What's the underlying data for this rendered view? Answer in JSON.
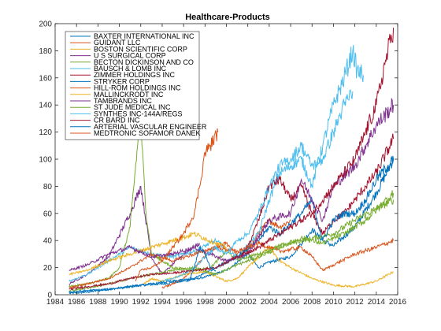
{
  "chart_data": {
    "type": "line",
    "title": "Healthcare-Products",
    "xlabel": "",
    "ylabel": "",
    "xlim": [
      1984,
      2016
    ],
    "ylim": [
      0,
      200
    ],
    "x_ticks": [
      1984,
      1986,
      1988,
      1990,
      1992,
      1994,
      1996,
      1998,
      2000,
      2002,
      2004,
      2006,
      2008,
      2010,
      2012,
      2014,
      2016
    ],
    "y_ticks": [
      0,
      20,
      40,
      60,
      80,
      100,
      120,
      140,
      160,
      180,
      200
    ],
    "grid": false,
    "legend_position": "top-left",
    "series": [
      {
        "name": "BAXTER INTERNATIONAL INC",
        "color": "#0072bd",
        "x": [
          1985.3,
          1987,
          1988,
          1990,
          1992,
          1994,
          1996,
          1998,
          2000,
          2002,
          2003,
          2004,
          2006,
          2008,
          2009,
          2010,
          2012,
          2014,
          2015.6
        ],
        "y": [
          1,
          2,
          3,
          5,
          7,
          8,
          10,
          13,
          18,
          30,
          20,
          24,
          28,
          48,
          40,
          36,
          50,
          75,
          100
        ]
      },
      {
        "name": "GUIDANT LLC",
        "color": "#d95319",
        "x": [
          1994,
          1995,
          1996,
          1997,
          1998,
          1999,
          2000,
          2001,
          2002,
          2003,
          2004,
          2005,
          2006
        ],
        "y": [
          5,
          8,
          12,
          20,
          28,
          35,
          38,
          30,
          32,
          45,
          55,
          50,
          55
        ]
      },
      {
        "name": "BOSTON SCIENTIFIC CORP",
        "color": "#edb120",
        "x": [
          1992.3,
          1993,
          1994,
          1996,
          1998,
          2000,
          2001,
          2002,
          2003,
          2004,
          2005,
          2006,
          2008,
          2010,
          2012,
          2014,
          2015.6
        ],
        "y": [
          8,
          12,
          10,
          15,
          17,
          10,
          12,
          20,
          28,
          35,
          25,
          20,
          12,
          7,
          6,
          10,
          17
        ]
      },
      {
        "name": "U S SURGICAL CORP",
        "color": "#7e2f8e",
        "x": [
          1985.3,
          1987,
          1989,
          1991,
          1992,
          1993,
          1994,
          1996,
          1997.5
        ],
        "y": [
          8,
          15,
          28,
          60,
          80,
          28,
          15,
          30,
          38
        ]
      },
      {
        "name": "BECTON DICKINSON AND CO",
        "color": "#77ac30",
        "x": [
          1985.3,
          1987,
          1989,
          1990,
          1991,
          1991.7,
          1992,
          1992.5,
          1993,
          1995,
          1997,
          1998.5,
          2000,
          2001,
          2003,
          2005,
          2007,
          2010,
          2012,
          2015.6
        ],
        "y": [
          6,
          8,
          12,
          20,
          50,
          110,
          125,
          60,
          30,
          20,
          18,
          20,
          32,
          26,
          30,
          36,
          40,
          45,
          55,
          70
        ]
      },
      {
        "name": "BAUSCH & LOMB INC",
        "color": "#4dbeee",
        "x": [
          1985.3,
          1987,
          1989,
          1991,
          1993,
          1995,
          1997,
          1999,
          2001,
          2003,
          2004,
          2005,
          2007,
          2008,
          2009,
          2010,
          2011,
          2011.8,
          2012.2,
          2012.8
        ],
        "y": [
          10,
          15,
          25,
          35,
          30,
          28,
          32,
          40,
          28,
          45,
          70,
          90,
          100,
          80,
          110,
          140,
          160,
          180,
          165,
          162
        ]
      },
      {
        "name": "ZIMMER HOLDINGS INC",
        "color": "#a2142f",
        "x": [
          2001.5,
          2002,
          2003,
          2004,
          2005,
          2006,
          2007,
          2008,
          2009,
          2010,
          2011,
          2012,
          2013,
          2014,
          2015.6
        ],
        "y": [
          30,
          35,
          55,
          80,
          85,
          70,
          80,
          60,
          45,
          55,
          60,
          70,
          80,
          90,
          115
        ]
      },
      {
        "name": "STRYKER CORP",
        "color": "#0072bd",
        "x": [
          1985.3,
          1987,
          1989,
          1991,
          1993,
          1995,
          1997,
          1999,
          2001,
          2003,
          2004,
          2005,
          2007,
          2008,
          2009,
          2010,
          2011,
          2012,
          2013,
          2014,
          2015.6
        ],
        "y": [
          2,
          3,
          4,
          6,
          8,
          10,
          12,
          20,
          28,
          40,
          50,
          45,
          60,
          70,
          40,
          55,
          60,
          60,
          70,
          85,
          100
        ]
      },
      {
        "name": "HILL-ROM HOLDINGS INC",
        "color": "#d95319",
        "x": [
          1985.3,
          1987,
          1989,
          1991,
          1993,
          1995,
          1997,
          1999,
          2001,
          2003,
          2005,
          2007,
          2008,
          2009,
          2010,
          2012,
          2014,
          2015.6
        ],
        "y": [
          5,
          8,
          12,
          20,
          30,
          25,
          30,
          35,
          32,
          38,
          32,
          35,
          28,
          18,
          22,
          30,
          35,
          40
        ]
      },
      {
        "name": "MALLINCKRODT INC",
        "color": "#edb120",
        "x": [
          1985.3,
          1987,
          1989,
          1991,
          1993,
          1995,
          1997,
          1999,
          2000
        ],
        "y": [
          15,
          18,
          25,
          30,
          35,
          40,
          45,
          38,
          35
        ]
      },
      {
        "name": "TAMBRANDS INC",
        "color": "#7e2f8e",
        "x": [
          1985.3,
          1987,
          1989,
          1991,
          1993,
          1995,
          1997,
          2000,
          2002,
          2004,
          2006,
          2007,
          2008,
          2009,
          2010,
          2012,
          2014,
          2015.6
        ],
        "y": [
          18,
          22,
          30,
          35,
          28,
          30,
          35,
          25,
          30,
          55,
          60,
          85,
          70,
          55,
          80,
          95,
          125,
          140
        ]
      },
      {
        "name": "ST JUDE MEDICAL INC",
        "color": "#77ac30",
        "x": [
          1985.3,
          1987,
          1989,
          1991,
          1993,
          1995,
          1997,
          1999,
          2001,
          2003,
          2005,
          2007,
          2009,
          2011,
          2013,
          2015.6
        ],
        "y": [
          3,
          5,
          8,
          12,
          15,
          18,
          20,
          15,
          22,
          28,
          35,
          42,
          38,
          45,
          55,
          75
        ]
      },
      {
        "name": "SYNTHES INC-144A/REGS",
        "color": "#4dbeee",
        "x": [
          1994,
          1995,
          1996,
          1997,
          1998,
          1999,
          2000,
          2001,
          2002,
          2003,
          2004,
          2005,
          2006,
          2007,
          2008,
          2009,
          2010,
          2011,
          2011.8
        ],
        "y": [
          10,
          12,
          15,
          20,
          28,
          35,
          30,
          40,
          45,
          60,
          80,
          95,
          100,
          110,
          95,
          100,
          120,
          140,
          150
        ]
      },
      {
        "name": "CR BARD INC",
        "color": "#a2142f",
        "x": [
          1985.3,
          1987,
          1989,
          1991,
          1993,
          1995,
          1997,
          1999,
          2001,
          2003,
          2005,
          2007,
          2008,
          2009,
          2010,
          2011,
          2012,
          2013,
          2014,
          2014.8,
          2015.6
        ],
        "y": [
          4,
          6,
          8,
          12,
          15,
          16,
          18,
          20,
          28,
          35,
          45,
          55,
          60,
          70,
          80,
          90,
          100,
          120,
          140,
          170,
          197
        ]
      },
      {
        "name": "ARTERIAL VASCULAR ENGINEER",
        "color": "#0072bd",
        "x": [
          1996.5,
          1997,
          1997.5,
          1998,
          1998.5,
          1999
        ],
        "y": [
          10,
          20,
          35,
          30,
          20,
          18
        ]
      },
      {
        "name": "MEDTRONIC SOFAMOR DANEK",
        "color": "#d95319",
        "x": [
          1991.5,
          1992,
          1993,
          1994,
          1995,
          1996,
          1997,
          1997.5,
          1998,
          1998.5,
          1999.2
        ],
        "y": [
          10,
          18,
          20,
          25,
          35,
          45,
          60,
          80,
          105,
          110,
          120
        ]
      }
    ]
  }
}
